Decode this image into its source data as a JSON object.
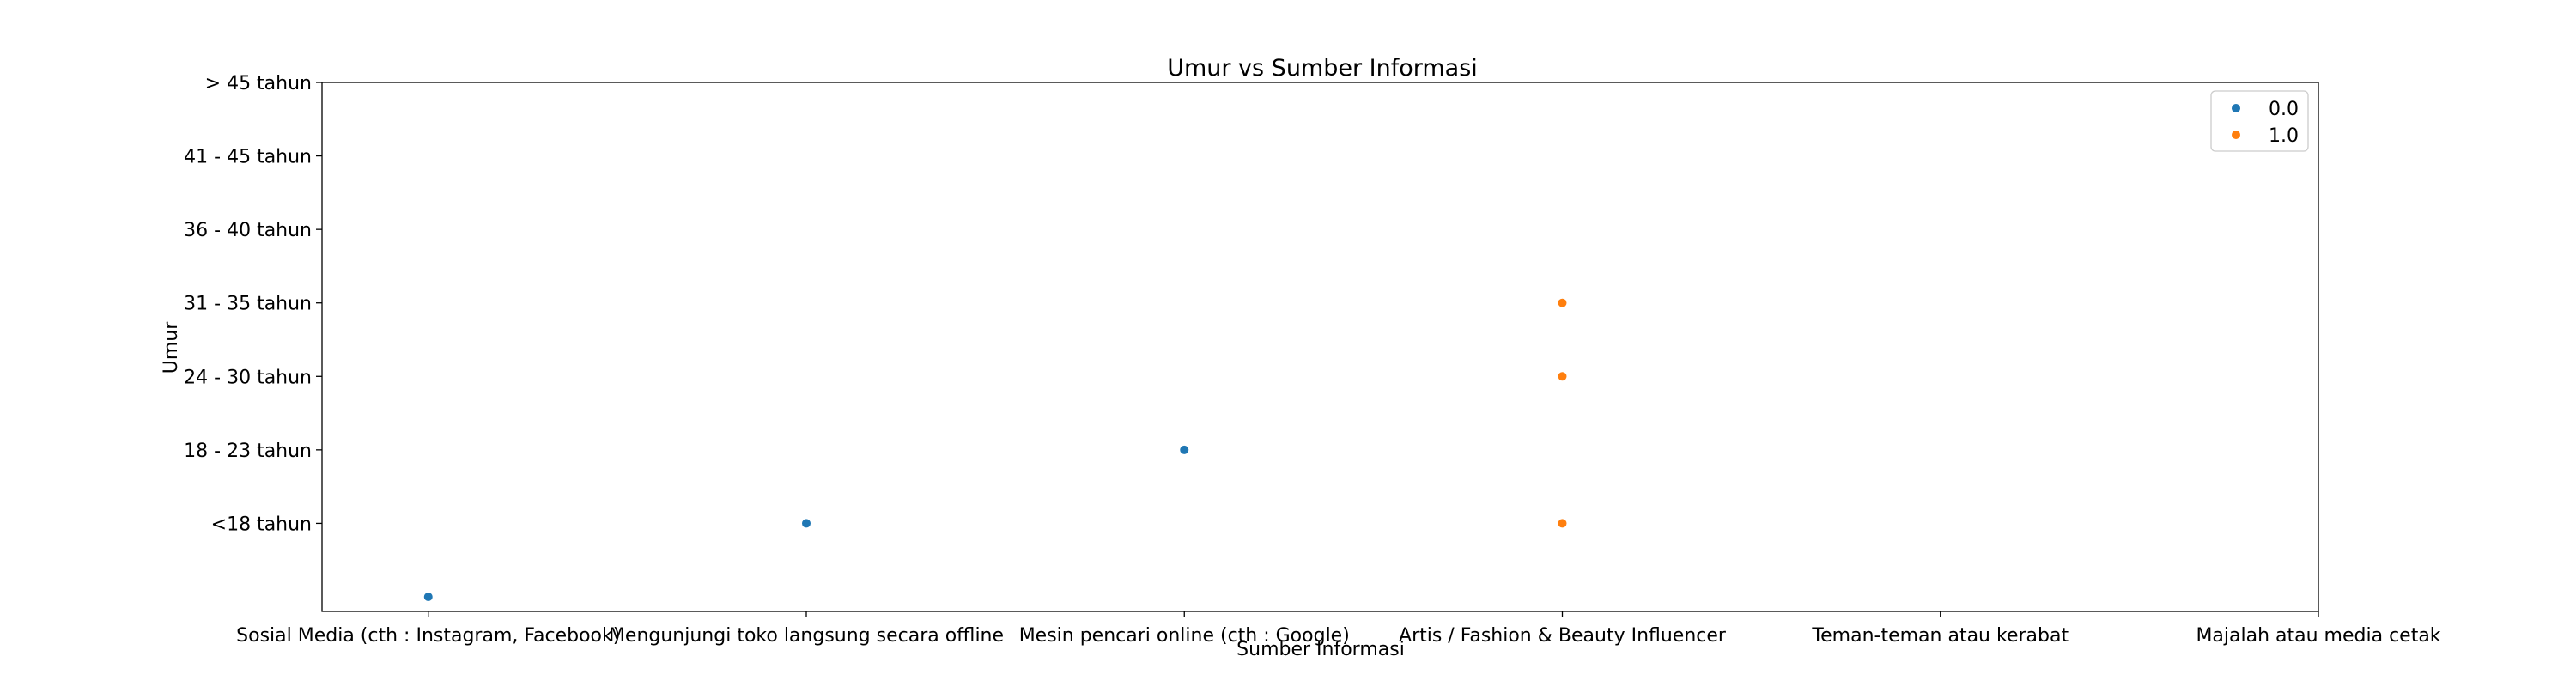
{
  "chart_data": {
    "type": "scatter",
    "title": "Umur vs Sumber Informasi",
    "xlabel": "Sumber Informasi",
    "ylabel": "Umur",
    "x_categories": [
      "Sosial Media (cth : Instagram, Facebook)",
      "Mengunjungi toko langsung secara offline",
      "Mesin pencari online (cth : Google)",
      "Artis / Fashion & Beauty Influencer",
      "Teman-teman atau kerabat",
      "Majalah atau media cetak"
    ],
    "y_categories": [
      "",
      "<18 tahun",
      "18 - 23 tahun",
      "24 - 30 tahun",
      "31 - 35 tahun",
      "36 - 40 tahun",
      "41 - 45 tahun",
      "> 45 tahun"
    ],
    "series": [
      {
        "name": "0.0",
        "color": "#1f77b4",
        "points": [
          {
            "x": "Sosial Media (cth : Instagram, Facebook)",
            "y": ""
          },
          {
            "x": "Mengunjungi toko langsung secara offline",
            "y": "<18 tahun"
          },
          {
            "x": "Mesin pencari online (cth : Google)",
            "y": "18 - 23 tahun"
          }
        ]
      },
      {
        "name": "1.0",
        "color": "#ff7f0e",
        "points": [
          {
            "x": "Artis / Fashion & Beauty Influencer",
            "y": "<18 tahun"
          },
          {
            "x": "Artis / Fashion & Beauty Influencer",
            "y": "24 - 30 tahun"
          },
          {
            "x": "Artis / Fashion & Beauty Influencer",
            "y": "31 - 35 tahun"
          }
        ]
      }
    ],
    "legend_position": "upper right",
    "grid": false
  }
}
